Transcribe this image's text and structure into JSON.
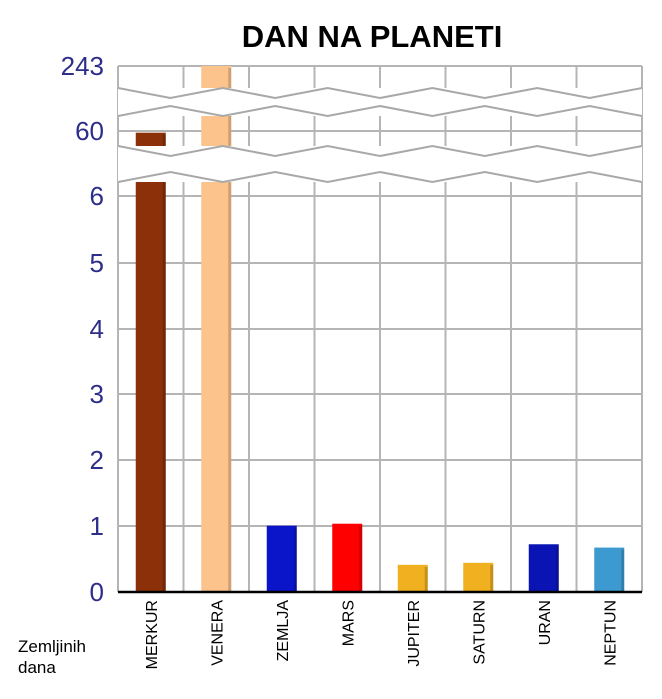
{
  "chart_data": {
    "type": "bar",
    "title": "DAN NA PLANETI",
    "unit_label": [
      "Zemljinih",
      "dana"
    ],
    "categories": [
      "MERKUR",
      "VENERA",
      "ZEMLJA",
      "MARS",
      "JUPITER",
      "SATURN",
      "URAN",
      "NEPTUN"
    ],
    "values": [
      58.6,
      243,
      1,
      1.03,
      0.41,
      0.44,
      0.72,
      0.67
    ],
    "colors": [
      "#8b3008",
      "#fcc48c",
      "#0a14c8",
      "#ff0000",
      "#f0b020",
      "#f0b020",
      "#0a14b4",
      "#3c9ad0"
    ],
    "y_ticks": [
      "0",
      "1",
      "2",
      "3",
      "4",
      "5",
      "6",
      "60",
      "243"
    ],
    "axis_breaks": [
      "6-60",
      "60-243"
    ],
    "grid": true
  }
}
